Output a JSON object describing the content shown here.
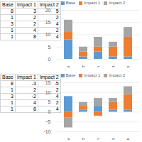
{
  "chart_data": [
    {
      "type": "bar",
      "stacked": true,
      "categories": [
        "a",
        "b",
        "c",
        "d",
        "e"
      ],
      "series": [
        {
          "name": "Base",
          "color": "#5b9bd5",
          "values": [
            8,
            1,
            3,
            1,
            1
          ]
        },
        {
          "name": "Impact 1",
          "color": "#ed7d31",
          "values": [
            3,
            2,
            2,
            4,
            8
          ]
        },
        {
          "name": "Impact 2",
          "color": "#a5a5a5",
          "values": [
            5,
            2,
            4,
            2,
            4
          ]
        }
      ],
      "ylim": [
        0,
        20
      ],
      "yticks": [
        0,
        5,
        10,
        15,
        20
      ],
      "grid": true,
      "legend": "top"
    },
    {
      "type": "bar",
      "stacked": true,
      "categories": [
        "a",
        "b",
        "c",
        "d",
        "e"
      ],
      "series": [
        {
          "name": "Base",
          "color": "#5b9bd5",
          "values": [
            8,
            1,
            3,
            1,
            1
          ]
        },
        {
          "name": "Impact 1",
          "color": "#ed7d31",
          "values": [
            -3,
            2,
            -2,
            4,
            8
          ]
        },
        {
          "name": "Impact 2",
          "color": "#a5a5a5",
          "values": [
            -5,
            2,
            4,
            2,
            4
          ]
        }
      ],
      "ylim": [
        -10,
        15
      ],
      "yticks": [
        -10,
        -5,
        0,
        5,
        10,
        15
      ],
      "grid": true,
      "legend": "top"
    }
  ]
}
